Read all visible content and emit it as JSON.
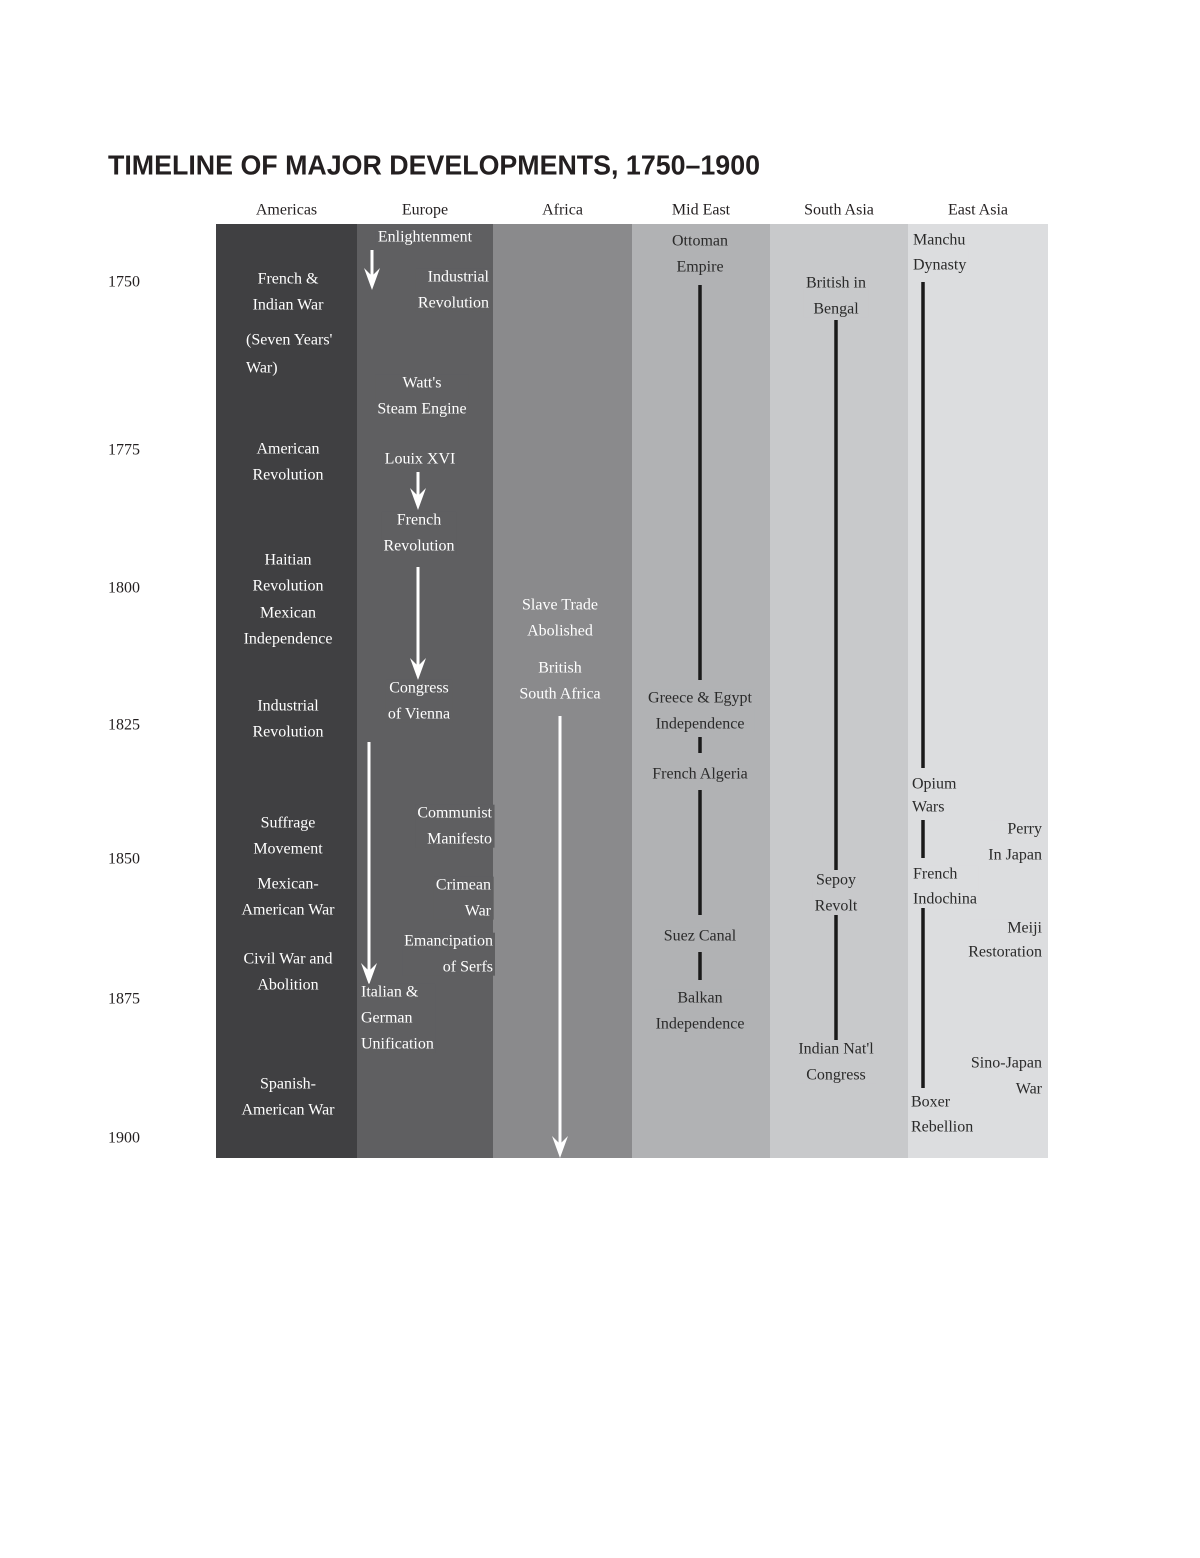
{
  "title": "TIMELINE OF MAJOR DEVELOPMENTS, 1750–1900",
  "years": [
    "1750",
    "1775",
    "1800",
    "1825",
    "1850",
    "1875",
    "1900"
  ],
  "columns": [
    {
      "name": "Americas",
      "events": [
        [
          "French &",
          "Indian War"
        ],
        [
          "(Seven Years'",
          "War)"
        ],
        [
          "American",
          "Revolution"
        ],
        [
          "Haitian",
          "Revolution"
        ],
        [
          "Mexican",
          "Independence"
        ],
        [
          "Industrial",
          "Revolution"
        ],
        [
          "Suffrage",
          "Movement"
        ],
        [
          "Mexican-",
          "American War"
        ],
        [
          "Civil War and",
          "Abolition"
        ],
        [
          "Spanish-",
          "American War"
        ]
      ]
    },
    {
      "name": "Europe",
      "events": [
        [
          "Enlightenment"
        ],
        [
          "Industrial",
          "Revolution"
        ],
        [
          "Watt's",
          "Steam Engine"
        ],
        [
          "Louix XVI"
        ],
        [
          "French",
          "Revolution"
        ],
        [
          "Congress",
          "of Vienna"
        ],
        [
          "Communist",
          "Manifesto"
        ],
        [
          "Crimean",
          "War"
        ],
        [
          "Emancipation",
          "of Serfs"
        ],
        [
          "Italian &",
          "German",
          "Unification"
        ]
      ]
    },
    {
      "name": "Africa",
      "events": [
        [
          "Slave Trade",
          "Abolished"
        ],
        [
          "British",
          "South Africa"
        ]
      ]
    },
    {
      "name": "Mid East",
      "events": [
        [
          "Ottoman",
          "Empire"
        ],
        [
          "Greece & Egypt",
          "Independence"
        ],
        [
          "French Algeria"
        ],
        [
          "Suez Canal"
        ],
        [
          "Balkan",
          "Independence"
        ]
      ]
    },
    {
      "name": "South Asia",
      "events": [
        [
          "British in",
          "Bengal"
        ],
        [
          "Sepoy",
          "Revolt"
        ],
        [
          "Indian Nat'l",
          "Congress"
        ]
      ]
    },
    {
      "name": "East Asia",
      "events": [
        [
          "Manchu",
          "Dynasty"
        ],
        [
          "Opium",
          "Wars"
        ],
        [
          "Perry",
          "In Japan"
        ],
        [
          "French",
          "Indochina"
        ],
        [
          "Meiji",
          "Restoration"
        ],
        [
          "Sino-Japan",
          "War"
        ],
        [
          "Boxer",
          "Rebellion"
        ]
      ]
    }
  ]
}
